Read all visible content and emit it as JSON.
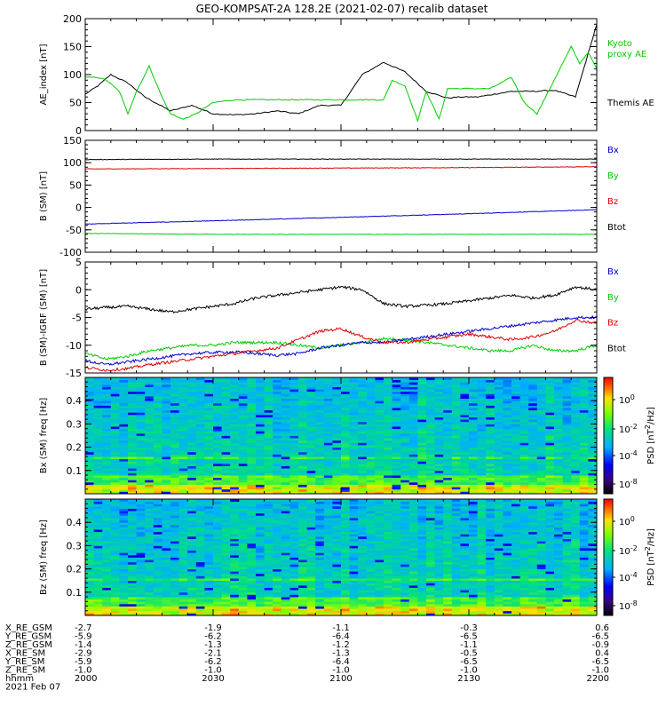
{
  "title": "GEO-KOMPSAT-2A 128.2E (2021-02-07) recalib dataset",
  "x_ticks": [
    "2000",
    "2030",
    "2100",
    "2130",
    "2200"
  ],
  "chart_data": [
    {
      "type": "line",
      "ylabel": "AE_index [nT]",
      "ylim": [
        0,
        200
      ],
      "yticks": [
        "0",
        "50",
        "100",
        "150",
        "200"
      ],
      "legend": [
        {
          "label": "Kyoto proxy AE",
          "lines": [
            "Kyoto",
            "proxy AE"
          ],
          "color": "#00cc00"
        },
        {
          "label": "Themis AE",
          "lines": [
            "Themis AE"
          ],
          "color": "#000000"
        }
      ],
      "series": [
        {
          "name": "Themis AE",
          "color": "#000000",
          "x": [
            0,
            3,
            6,
            10,
            14,
            20,
            25,
            30,
            35,
            40,
            45,
            50,
            55,
            60,
            65,
            70,
            75,
            80,
            85,
            88,
            92,
            96,
            100,
            105,
            110,
            115,
            120
          ],
          "y": [
            65,
            80,
            100,
            85,
            60,
            35,
            45,
            30,
            28,
            30,
            35,
            30,
            45,
            45,
            100,
            122,
            105,
            70,
            58,
            60,
            60,
            65,
            70,
            70,
            72,
            60,
            190
          ]
        },
        {
          "name": "Kyoto proxy AE",
          "color": "#00cc00",
          "x": [
            0,
            3,
            5,
            8,
            10,
            12,
            15,
            18,
            20,
            23,
            26,
            30,
            35,
            40,
            45,
            50,
            55,
            60,
            65,
            70,
            72,
            75,
            78,
            80,
            83,
            85,
            88,
            90,
            95,
            100,
            103,
            106,
            110,
            114,
            116,
            118,
            120
          ],
          "y": [
            95,
            95,
            90,
            70,
            30,
            70,
            115,
            60,
            30,
            20,
            30,
            50,
            55,
            55,
            55,
            55,
            55,
            55,
            55,
            55,
            90,
            80,
            18,
            70,
            20,
            75,
            75,
            75,
            75,
            95,
            50,
            30,
            90,
            150,
            120,
            140,
            110
          ]
        }
      ]
    },
    {
      "type": "line",
      "ylabel": "B (SM) [nT]",
      "ylim": [
        -100,
        150
      ],
      "yticks": [
        "-100",
        "-50",
        "0",
        "50",
        "100",
        "150"
      ],
      "legend": [
        {
          "label": "Bx",
          "lines": [
            "Bx"
          ],
          "color": "#0000cc"
        },
        {
          "label": "By",
          "lines": [
            "By"
          ],
          "color": "#00cc00"
        },
        {
          "label": "Bz",
          "lines": [
            "Bz"
          ],
          "color": "#dd0000"
        },
        {
          "label": "Btot",
          "lines": [
            "Btot"
          ],
          "color": "#000000"
        }
      ],
      "series": [
        {
          "name": "Bx",
          "color": "#0000cc",
          "x": [
            0,
            30,
            60,
            90,
            120
          ],
          "y": [
            -37,
            -30,
            -22,
            -14,
            -5
          ]
        },
        {
          "name": "By",
          "color": "#00cc00",
          "x": [
            0,
            30,
            60,
            90,
            120
          ],
          "y": [
            -58,
            -60,
            -60,
            -60,
            -60
          ]
        },
        {
          "name": "Bz",
          "color": "#dd0000",
          "x": [
            0,
            30,
            60,
            90,
            120
          ],
          "y": [
            86,
            87,
            88,
            89,
            91
          ]
        },
        {
          "name": "Btot",
          "color": "#000000",
          "x": [
            0,
            30,
            60,
            90,
            120
          ],
          "y": [
            107,
            108,
            108,
            108,
            108
          ]
        }
      ]
    },
    {
      "type": "line",
      "ylabel": "B (SM)-IGRF (SM) [nT]",
      "ylim": [
        -15,
        5
      ],
      "yticks": [
        "-15",
        "-10",
        "-5",
        "0",
        "5"
      ],
      "legend": [
        {
          "label": "Bx",
          "lines": [
            "Bx"
          ],
          "color": "#0000cc"
        },
        {
          "label": "By",
          "lines": [
            "By"
          ],
          "color": "#00cc00"
        },
        {
          "label": "Bz",
          "lines": [
            "Bz"
          ],
          "color": "#dd0000"
        },
        {
          "label": "Btot",
          "lines": [
            "Btot"
          ],
          "color": "#000000"
        }
      ],
      "series": [
        {
          "name": "Btot",
          "color": "#000000",
          "x": [
            0,
            5,
            10,
            15,
            20,
            25,
            30,
            35,
            40,
            45,
            50,
            55,
            60,
            65,
            70,
            75,
            80,
            85,
            90,
            95,
            100,
            105,
            110,
            115,
            120
          ],
          "y": [
            -3.5,
            -3.2,
            -3,
            -3.5,
            -4,
            -3.5,
            -3,
            -2.5,
            -1.5,
            -1,
            -0.5,
            0,
            0.5,
            0,
            -2.5,
            -3,
            -2.8,
            -2.5,
            -2,
            -1.5,
            -1,
            -1.5,
            -1,
            0.5,
            0
          ]
        },
        {
          "name": "By",
          "color": "#00cc00",
          "x": [
            0,
            5,
            10,
            15,
            20,
            25,
            30,
            35,
            40,
            45,
            50,
            55,
            60,
            65,
            70,
            75,
            80,
            85,
            90,
            95,
            100,
            105,
            110,
            115,
            120
          ],
          "y": [
            -11.5,
            -12.5,
            -12,
            -11,
            -10.5,
            -10,
            -10,
            -9.5,
            -9.5,
            -9.5,
            -10,
            -10.5,
            -10,
            -9.5,
            -8.8,
            -9,
            -9.5,
            -10,
            -10.5,
            -11,
            -11,
            -10,
            -11,
            -11,
            -10
          ]
        },
        {
          "name": "Bx",
          "color": "#0000cc",
          "x": [
            0,
            5,
            10,
            15,
            20,
            25,
            30,
            35,
            40,
            45,
            50,
            55,
            60,
            65,
            70,
            75,
            80,
            85,
            90,
            95,
            100,
            105,
            110,
            115,
            120
          ],
          "y": [
            -12.8,
            -13.5,
            -13,
            -12.5,
            -12,
            -11.5,
            -11.3,
            -11.2,
            -11.5,
            -11.8,
            -11.5,
            -10.5,
            -10,
            -9.5,
            -9.5,
            -9,
            -8.5,
            -8,
            -7.5,
            -7,
            -6.5,
            -6,
            -5.5,
            -5,
            -5
          ]
        },
        {
          "name": "Bz",
          "color": "#dd0000",
          "x": [
            0,
            5,
            10,
            15,
            20,
            25,
            30,
            35,
            40,
            45,
            50,
            55,
            60,
            65,
            70,
            75,
            80,
            85,
            90,
            95,
            100,
            105,
            110,
            115,
            120
          ],
          "y": [
            -14,
            -14.5,
            -14.2,
            -13.5,
            -13,
            -12.5,
            -12,
            -11.5,
            -11,
            -10.5,
            -9,
            -7.5,
            -7,
            -8.5,
            -9.5,
            -9.5,
            -9,
            -8.5,
            -8,
            -8.5,
            -9,
            -8.5,
            -7.5,
            -5.5,
            -6
          ]
        }
      ]
    },
    {
      "type": "heatmap",
      "ylabel": "Bx (SM) freq [Hz]",
      "ylim": [
        0,
        0.5
      ],
      "yticks": [
        "0.1",
        "0.2",
        "0.3",
        "0.4"
      ],
      "colorbar": {
        "label": "PSD [nT^2/Hz]",
        "ticks": [
          "10^0",
          "10^-2",
          "10^-4",
          "10^-8"
        ]
      },
      "columns": 60,
      "rows": 50
    },
    {
      "type": "heatmap",
      "ylabel": "Bz (SM) freq [Hz]",
      "ylim": [
        0,
        0.5
      ],
      "yticks": [
        "0.1",
        "0.2",
        "0.3",
        "0.4"
      ],
      "colorbar": {
        "label": "PSD [nT^2/Hz]",
        "ticks": [
          "10^0",
          "10^-2",
          "10^-4",
          "10^-8"
        ]
      },
      "columns": 60,
      "rows": 50
    }
  ],
  "ephemeris": {
    "rows": [
      {
        "label": "X_RE_GSM",
        "values": [
          "-2.7",
          "-1.9",
          "-1.1",
          "-0.3",
          "0.6"
        ]
      },
      {
        "label": "Y_RE_GSM",
        "values": [
          "-5.9",
          "-6.2",
          "-6.4",
          "-6.5",
          "-6.5"
        ]
      },
      {
        "label": "Z_RE_GSM",
        "values": [
          "-1.4",
          "-1.3",
          "-1.2",
          "-1.1",
          "-0.9"
        ]
      },
      {
        "label": "X_RE_SM",
        "values": [
          "-2.9",
          "-2.1",
          "-1.3",
          "-0.5",
          "0.4"
        ]
      },
      {
        "label": "Y_RE_SM",
        "values": [
          "-5.9",
          "-6.2",
          "-6.4",
          "-6.5",
          "-6.5"
        ]
      },
      {
        "label": "Z_RE_SM",
        "values": [
          "-1.0",
          "-1.0",
          "-1.0",
          "-1.0",
          "-1.0"
        ]
      },
      {
        "label": "hhmm",
        "values": [
          "2000",
          "2030",
          "2100",
          "2130",
          "2200"
        ]
      }
    ],
    "date": "2021 Feb 07"
  },
  "colors": {
    "axis": "#000000",
    "text": "#000000"
  }
}
